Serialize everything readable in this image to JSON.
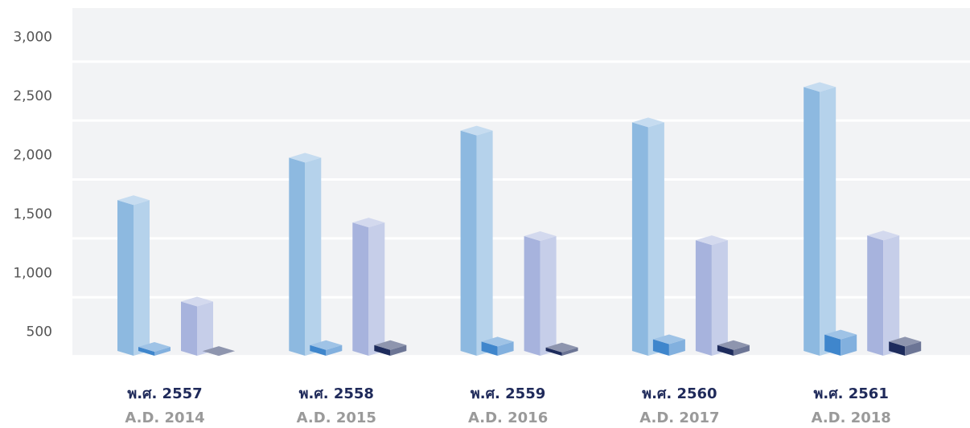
{
  "chart_data": {
    "type": "bar3d",
    "categories": [
      "พ.ศ. 2557",
      "พ.ศ. 2558",
      "พ.ศ. 2559",
      "พ.ศ. 2560",
      "พ.ศ. 2561"
    ],
    "sublabels": [
      "A.D. 2014",
      "A.D. 2015",
      "A.D. 2016",
      "A.D. 2017",
      "A.D. 2018"
    ],
    "series": [
      {
        "color": "#8db9e0",
        "values": [
          1620,
          1980,
          2210,
          2280,
          2580
        ]
      },
      {
        "color": "#3f86cc",
        "values": [
          375,
          390,
          420,
          440,
          480
        ]
      },
      {
        "color": "#a7b3dd",
        "values": [
          760,
          1430,
          1315,
          1280,
          1320
        ]
      },
      {
        "color": "#1d2b5c",
        "values": [
          340,
          390,
          370,
          390,
          420
        ]
      }
    ],
    "ylim": [
      300,
      3250
    ],
    "yticks": [
      500,
      {
        "value": 1000,
        "label": "1,000"
      },
      {
        "value": 1500,
        "label": "1,500"
      },
      {
        "value": 2000,
        "label": "2,000"
      },
      {
        "value": 2500,
        "label": "2,500"
      },
      {
        "value": 3000,
        "label": "3,000"
      }
    ],
    "grid": true
  }
}
